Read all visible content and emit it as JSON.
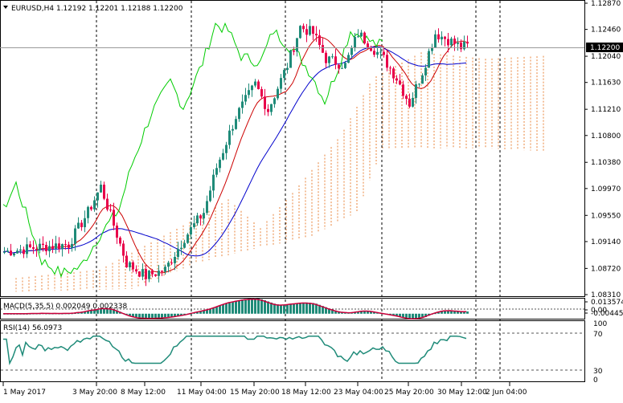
{
  "header": {
    "symbol_line": "EURUSD,H4  1.12192 1.12201 1.12188 1.12200"
  },
  "current_price": "1.12200",
  "price_axis": {
    "ticks": [
      "1.12870",
      "1.12460",
      "1.12040",
      "1.11630",
      "1.11210",
      "1.10800",
      "1.10380",
      "1.09970",
      "1.09550",
      "1.09140",
      "1.08720",
      "1.08310"
    ],
    "range": [
      1.0831,
      1.1287
    ]
  },
  "macd": {
    "label": "MACD(5,35,5) 0.002049 0.002338",
    "ticks": [
      "0.013574",
      "0.00",
      "-0.004455"
    ]
  },
  "rsi": {
    "label": "RSI(14) 56.0973",
    "ticks": [
      "100",
      "70",
      "30",
      "0"
    ]
  },
  "time_axis": {
    "labels": [
      "1 May 2017",
      "3 May 20:00",
      "8 May 12:00",
      "11 May 04:00",
      "15 May 20:00",
      "18 May 12:00",
      "23 May 04:00",
      "25 May 20:00",
      "30 May 12:00",
      "2 Jun 04:00"
    ]
  },
  "colors": {
    "bull": "#1f8b79",
    "bear": "#e8004a",
    "tenkan": "#cc0000",
    "kijun": "#0000cc",
    "chikou": "#00cc00",
    "cloud": "#e8833a",
    "macd_line": "#c8003a",
    "macd_hist": "#1f8b79",
    "rsi_line": "#1f8b79"
  }
}
